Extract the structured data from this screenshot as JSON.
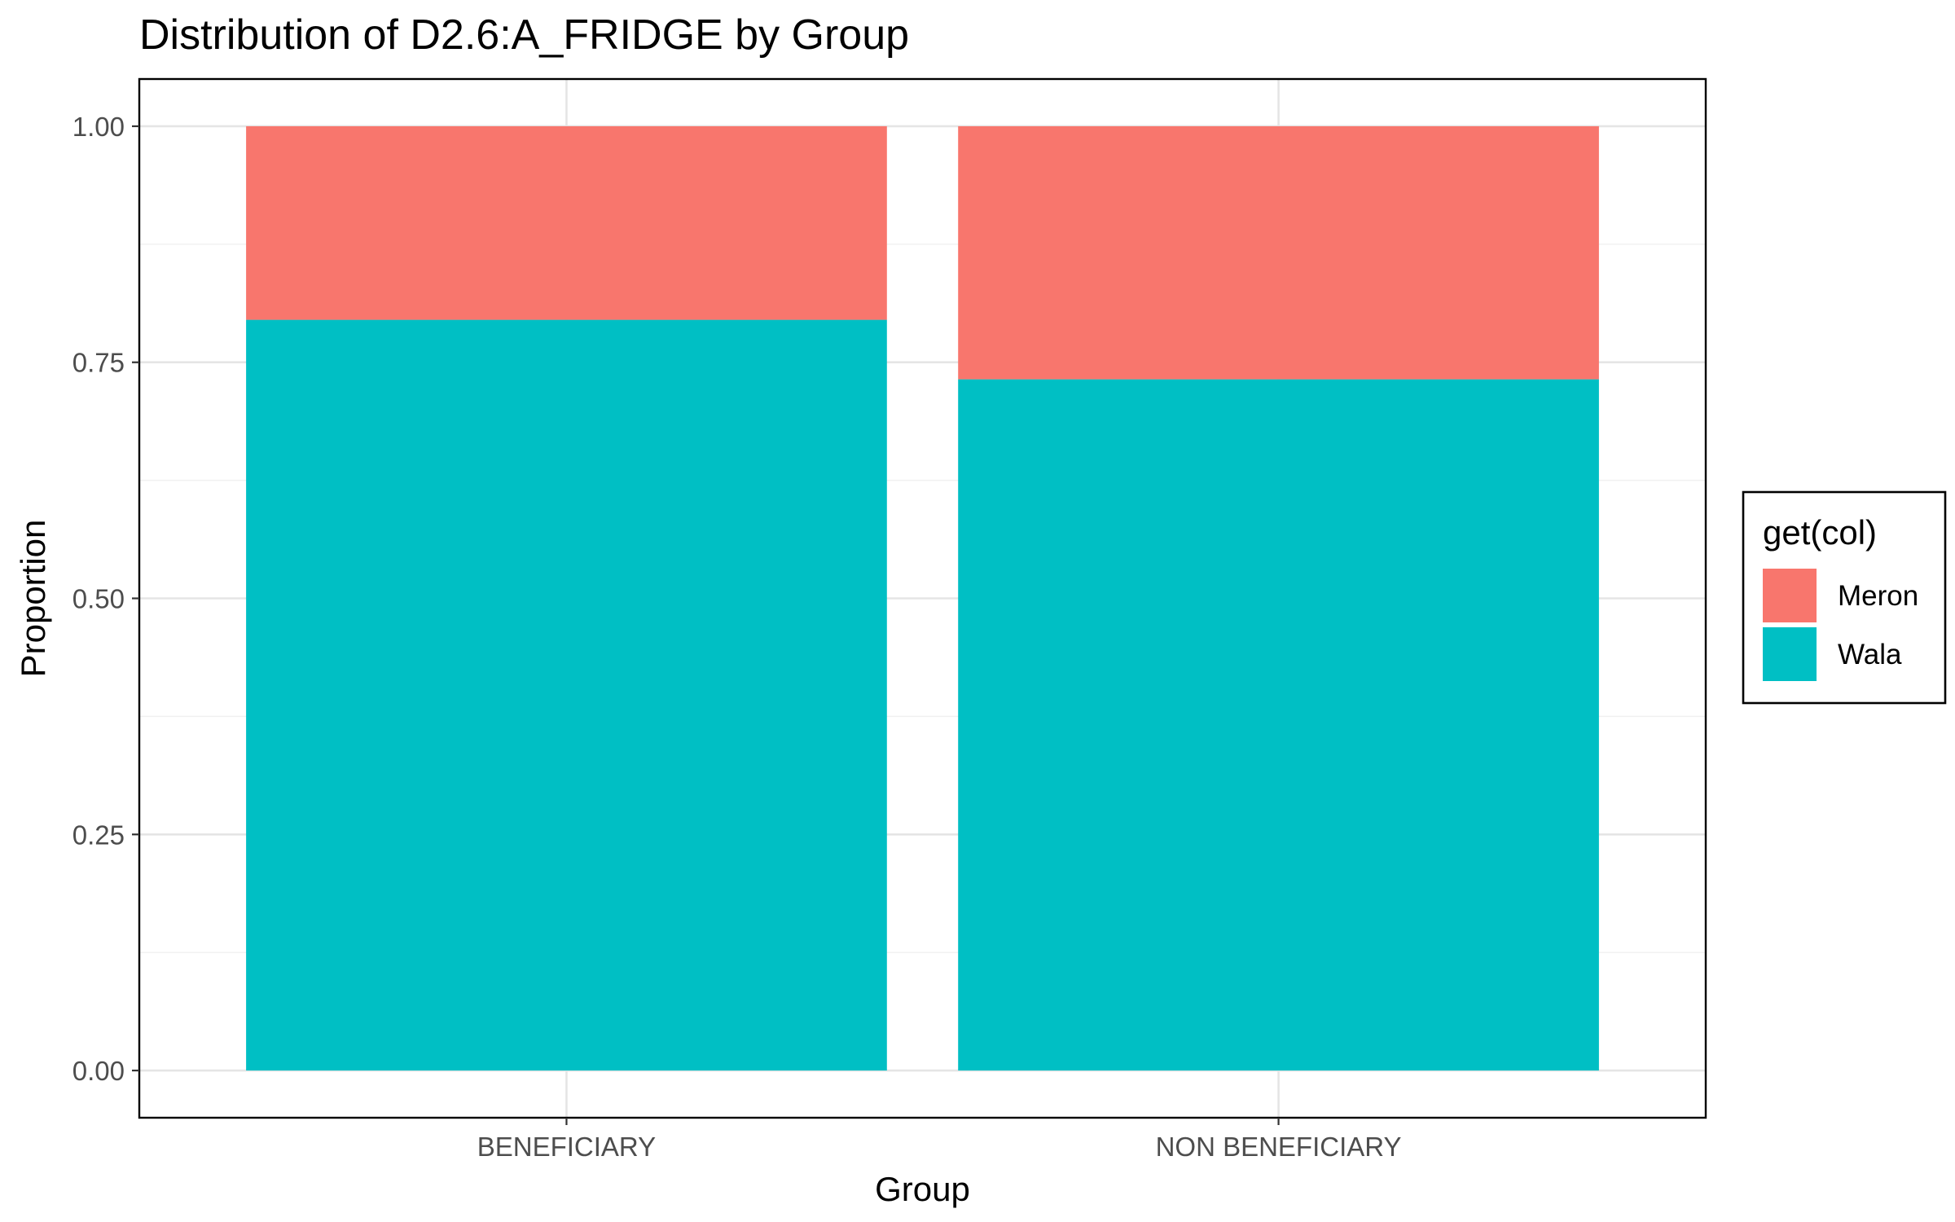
{
  "chart_data": {
    "type": "bar",
    "stacked": true,
    "title": "Distribution of D2.6:A_FRIDGE by Group",
    "xlabel": "Group",
    "ylabel": "Proportion",
    "categories": [
      "BENEFICIARY",
      "NON BENEFICIARY"
    ],
    "series": [
      {
        "name": "Meron",
        "values": [
          0.205,
          0.268
        ],
        "color": "#F8766D"
      },
      {
        "name": "Wala",
        "values": [
          0.795,
          0.732
        ],
        "color": "#00BFC4"
      }
    ],
    "ylim": [
      -0.05,
      1.05
    ],
    "yticks": [
      0,
      0.25,
      0.5,
      0.75,
      1
    ],
    "ytick_labels": [
      "0.00",
      "0.25",
      "0.50",
      "0.75",
      "1.00"
    ],
    "legend": {
      "title": "get(col)",
      "position": "right"
    },
    "grid": true
  }
}
